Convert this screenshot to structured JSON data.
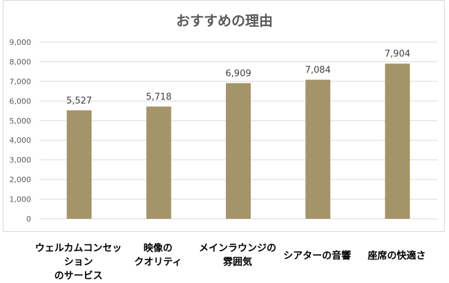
{
  "chart_data": {
    "type": "bar",
    "title": "おすすめの理由",
    "categories": [
      "ウェルカムコンセッション\nのサービス",
      "映像の\nクオリティ",
      "メインラウンジの\n雰囲気",
      "シアターの音響",
      "座席の快適さ"
    ],
    "values": [
      5527,
      5718,
      6909,
      7084,
      7904
    ],
    "value_labels": [
      "5,527",
      "5,718",
      "6,909",
      "7,084",
      "7,904"
    ],
    "yticks": [
      "0",
      "1,000",
      "2,000",
      "3,000",
      "4,000",
      "5,000",
      "6,000",
      "7,000",
      "8,000",
      "9,000"
    ],
    "ylim": [
      0,
      9000
    ],
    "grid": true,
    "legend": false,
    "bar_color": "#a59469",
    "xlabel": "",
    "ylabel": ""
  }
}
